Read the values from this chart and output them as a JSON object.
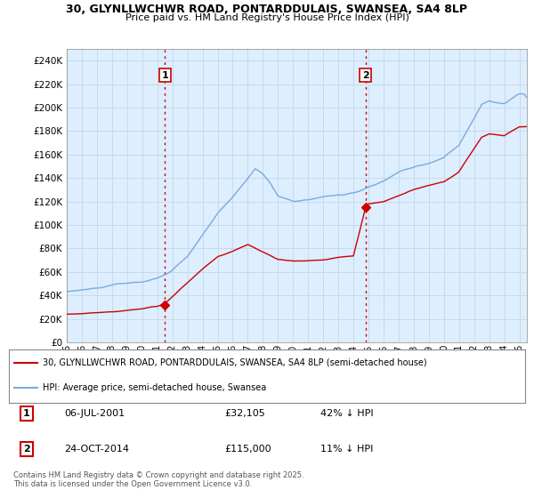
{
  "title": "30, GLYNLLWCHWR ROAD, PONTARDDULAIS, SWANSEA, SA4 8LP",
  "subtitle": "Price paid vs. HM Land Registry's House Price Index (HPI)",
  "ylim": [
    0,
    250000
  ],
  "yticks": [
    0,
    20000,
    40000,
    60000,
    80000,
    100000,
    120000,
    140000,
    160000,
    180000,
    200000,
    220000,
    240000
  ],
  "hpi_color": "#7aabdb",
  "price_color": "#cc0000",
  "vline_color": "#cc0000",
  "grid_color": "#c8daea",
  "plot_background": "#ddeeff",
  "marker1": {
    "date_num": 2001.51,
    "price": 32105,
    "label": "1",
    "text": "06-JUL-2001",
    "amount": "£32,105",
    "hpi_note": "42% ↓ HPI"
  },
  "marker2": {
    "date_num": 2014.81,
    "price": 115000,
    "label": "2",
    "text": "24-OCT-2014",
    "amount": "£115,000",
    "hpi_note": "11% ↓ HPI"
  },
  "legend_property_label": "30, GLYNLLWCHWR ROAD, PONTARDDULAIS, SWANSEA, SA4 8LP (semi-detached house)",
  "legend_hpi_label": "HPI: Average price, semi-detached house, Swansea",
  "footer": "Contains HM Land Registry data © Crown copyright and database right 2025.\nThis data is licensed under the Open Government Licence v3.0.",
  "xmin": 1995,
  "xmax": 2025.5,
  "hpi_knots_x": [
    1995,
    1996,
    1997,
    1998,
    1999,
    2000,
    2001,
    2002,
    2003,
    2004,
    2005,
    2006,
    2007,
    2007.5,
    2008,
    2008.5,
    2009,
    2010,
    2011,
    2012,
    2013,
    2014,
    2015,
    2016,
    2017,
    2018,
    2019,
    2020,
    2021,
    2022,
    2022.5,
    2023,
    2024,
    2025
  ],
  "hpi_knots_y": [
    43000,
    44500,
    46000,
    47500,
    49000,
    51000,
    54000,
    60000,
    72000,
    90000,
    108000,
    122000,
    138000,
    146000,
    141000,
    133000,
    122000,
    118000,
    118000,
    120000,
    122000,
    123000,
    127000,
    132000,
    140000,
    145000,
    148000,
    152000,
    162000,
    185000,
    197000,
    200000,
    197000,
    205000
  ],
  "prop_knots_x": [
    1995,
    1996,
    1997,
    1998,
    1999,
    2000,
    2001,
    2001.51,
    2002,
    2003,
    2004,
    2005,
    2006,
    2007,
    2007.5,
    2008,
    2008.5,
    2009,
    2010,
    2011,
    2012,
    2013,
    2014,
    2014.81,
    2015,
    2016,
    2017,
    2018,
    2019,
    2020,
    2021,
    2022,
    2022.5,
    2023,
    2024,
    2025
  ],
  "prop_knots_y": [
    24000,
    24500,
    25000,
    25500,
    26500,
    28000,
    30000,
    32105,
    38000,
    50000,
    62000,
    72000,
    76000,
    82000,
    79000,
    76000,
    73000,
    70000,
    69000,
    70000,
    71000,
    73000,
    74000,
    115000,
    118000,
    120000,
    125000,
    130000,
    133000,
    136000,
    145000,
    165000,
    175000,
    178000,
    176000,
    184000
  ]
}
